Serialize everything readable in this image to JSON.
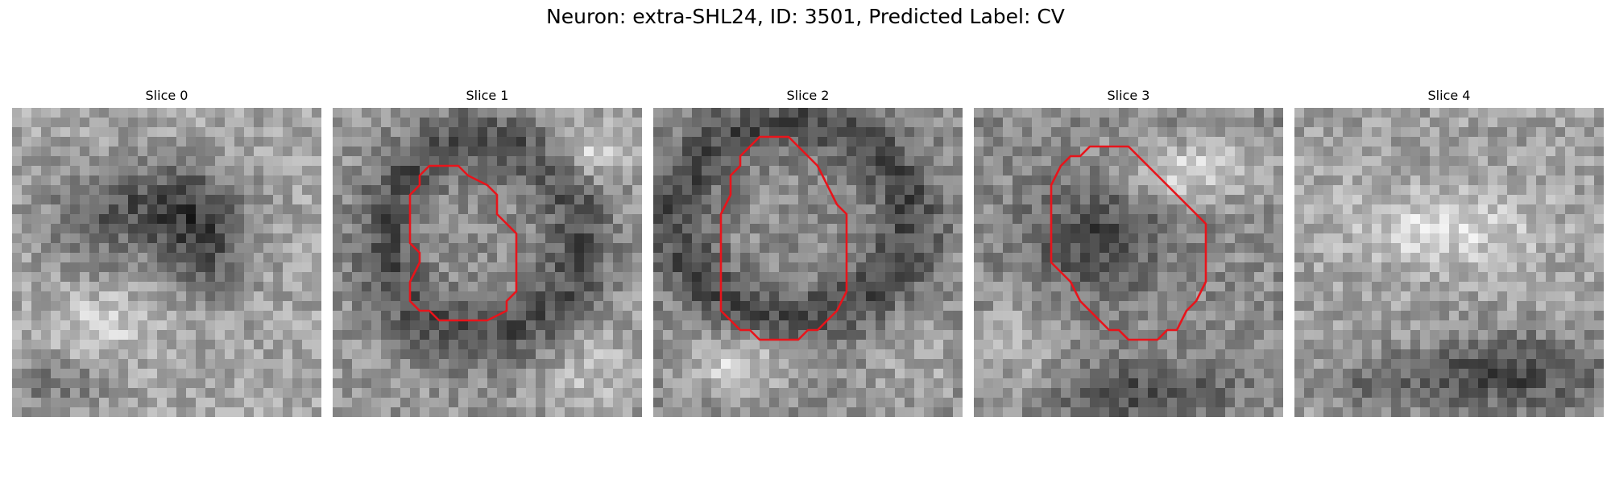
{
  "figure": {
    "title": "Neuron: extra-SHL24, ID: 3501, Predicted Label: CV"
  },
  "panels": [
    {
      "title": "Slice 0",
      "has_contour": false
    },
    {
      "title": "Slice 1",
      "has_contour": true
    },
    {
      "title": "Slice 2",
      "has_contour": true
    },
    {
      "title": "Slice 3",
      "has_contour": true
    },
    {
      "title": "Slice 4",
      "has_contour": false
    }
  ],
  "contour_color": "#e8141b",
  "colormap": "grayscale"
}
